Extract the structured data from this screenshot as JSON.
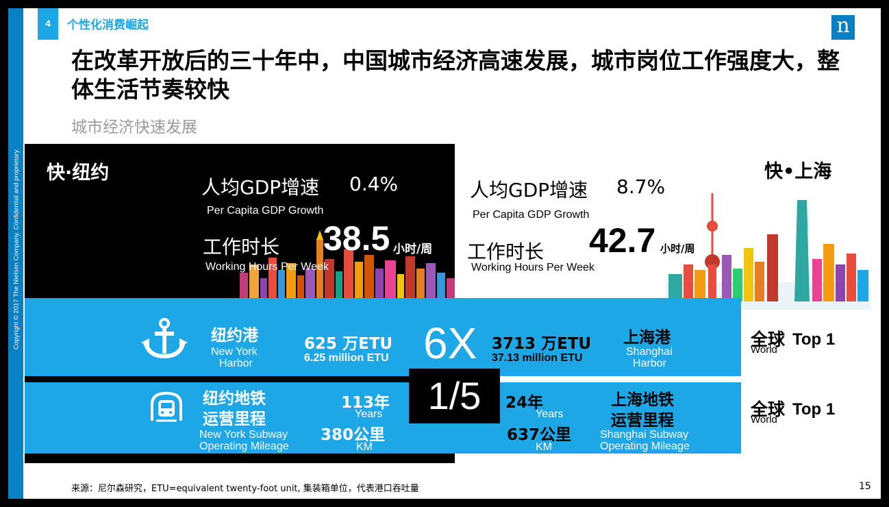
{
  "copyright": "Copyright © 2017 The Nielsen Company. Confidential and proprietary.",
  "section": {
    "number": "4",
    "title": "个性化消费崛起"
  },
  "logo_letter": "n",
  "headline": "在改革开放后的三十年中，中国城市经济高速发展，城市岗位工作强度大，整体生活节奏较快",
  "subtitle": "城市经济快速发展",
  "ny": {
    "title": "快·纽约",
    "gdp_cn": "人均GDP增速",
    "gdp_value": "0.4%",
    "gdp_en": "Per Capita GDP Growth",
    "hours_cn": "工作时长",
    "hours_value": "38.5",
    "hours_unit": "小时/周",
    "hours_en": "Working Hours Per Week"
  },
  "sh": {
    "title": "快•上海",
    "gdp_cn": "人均GDP增速",
    "gdp_value": "8.7%",
    "gdp_en": "Per Capita GDP Growth",
    "hours_cn": "工作时长",
    "hours_value": "42.7",
    "hours_unit": "小时/周",
    "hours_en": "Working Hours Per Week"
  },
  "harbor": {
    "ny_cn": "纽约港",
    "ny_en1": "New York",
    "ny_en2": "Harbor",
    "ny_value": "625 万ETU",
    "ny_value_en": "6.25 million ETU",
    "ratio": "6X",
    "sh_value": "3713 万ETU",
    "sh_value_en": "37.13 million ETU",
    "sh_cn": "上海港",
    "sh_en1": "Shanghai",
    "sh_en2": "Harbor",
    "rank_cn": "全球",
    "rank_en": "World",
    "rank": "Top 1"
  },
  "subway": {
    "ny_cn1": "纽约地铁",
    "ny_cn2": "运营里程",
    "ny_en1": "New York Subway",
    "ny_en2": "Operating Mileage",
    "ny_years": "113年",
    "ny_years_en": "Years",
    "ny_km": "380公里",
    "ny_km_en": "KM",
    "ratio": "1/5",
    "sh_years": "24年",
    "sh_years_en": "Years",
    "sh_km": "637公里",
    "sh_km_en": "KM",
    "sh_cn1": "上海地铁",
    "sh_cn2": "运营里程",
    "sh_en1": "Shanghai Subway",
    "sh_en2": "Operating Mileage",
    "rank_cn": "全球",
    "rank_en": "World",
    "rank": "Top 1"
  },
  "source": "来源：尼尔森研究，ETU=equivalent twenty-foot unit, 集装箱单位，代表港口吞吐量",
  "page_number": "15",
  "colors": {
    "nielsen_blue": "#1ea7e6",
    "dark_blue": "#0a7fc2"
  }
}
